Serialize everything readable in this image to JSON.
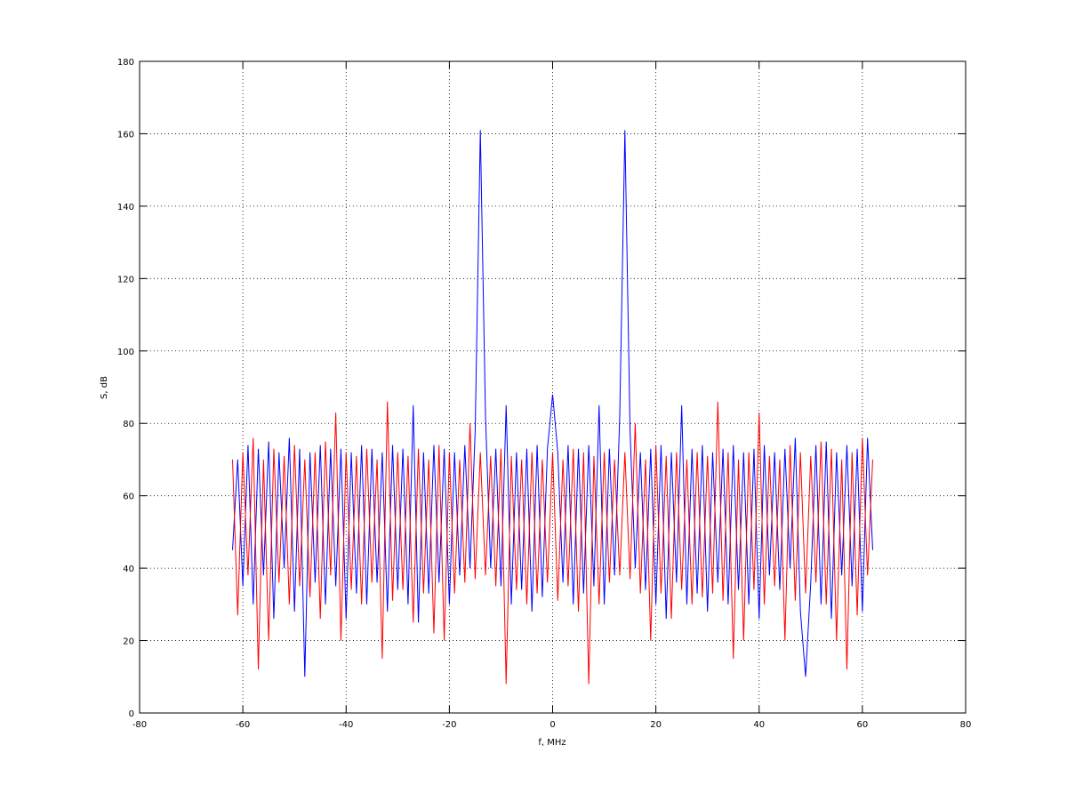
{
  "chart_data": {
    "type": "line",
    "xlabel": "f, MHz",
    "ylabel": "S, dB",
    "xlim": [
      -80,
      80
    ],
    "xticks": [
      -80,
      -60,
      -40,
      -20,
      0,
      20,
      40,
      60,
      80
    ],
    "ylim": [
      0,
      180
    ],
    "yticks": [
      0,
      20,
      40,
      60,
      80,
      100,
      120,
      140,
      160,
      180
    ],
    "grid": true,
    "x": [
      -62,
      -61,
      -60,
      -59,
      -58,
      -57,
      -56,
      -55,
      -54,
      -53,
      -52,
      -51,
      -50,
      -49,
      -48,
      -47,
      -46,
      -45,
      -44,
      -43,
      -42,
      -41,
      -40,
      -39,
      -38,
      -37,
      -36,
      -35,
      -34,
      -33,
      -32,
      -31,
      -30,
      -29,
      -28,
      -27,
      -26,
      -25,
      -24,
      -23,
      -22,
      -21,
      -20,
      -19,
      -18,
      -17,
      -16,
      -15,
      -14,
      -13,
      -12,
      -11,
      -10,
      -9,
      -8,
      -7,
      -6,
      -5,
      -4,
      -3,
      -2,
      -1,
      0,
      1,
      2,
      3,
      4,
      5,
      6,
      7,
      8,
      9,
      10,
      11,
      12,
      13,
      14,
      15,
      16,
      17,
      18,
      19,
      20,
      21,
      22,
      23,
      24,
      25,
      26,
      27,
      28,
      29,
      30,
      31,
      32,
      33,
      34,
      35,
      36,
      37,
      38,
      39,
      40,
      41,
      42,
      43,
      44,
      45,
      46,
      47,
      48,
      49,
      50,
      51,
      52,
      53,
      54,
      55,
      56,
      57,
      58,
      59,
      60,
      61,
      62
    ],
    "series": [
      {
        "color": "#0000ff",
        "values": [
          45,
          70,
          35,
          74,
          30,
          73,
          38,
          75,
          26,
          72,
          40,
          76,
          28,
          73,
          10,
          72,
          36,
          74,
          30,
          73,
          35,
          73,
          26,
          72,
          33,
          74,
          30,
          73,
          36,
          72,
          28,
          74,
          34,
          73,
          30,
          85,
          25,
          72,
          33,
          74,
          36,
          73,
          30,
          72,
          38,
          74,
          40,
          78,
          161,
          82,
          40,
          73,
          35,
          85,
          30,
          72,
          34,
          73,
          28,
          74,
          32,
          73,
          88,
          72,
          36,
          74,
          30,
          73,
          33,
          74,
          35,
          85,
          30,
          73,
          38,
          82,
          161,
          78,
          40,
          72,
          34,
          73,
          30,
          74,
          26,
          72,
          36,
          85,
          30,
          73,
          33,
          74,
          28,
          72,
          36,
          73,
          30,
          74,
          34,
          72,
          30,
          73,
          26,
          74,
          38,
          72,
          34,
          73,
          40,
          76,
          28,
          10,
          36,
          74,
          30,
          75,
          26,
          72,
          38,
          74,
          35,
          73,
          28,
          76,
          45
        ]
      },
      {
        "color": "#ff0000",
        "values": [
          70,
          27,
          72,
          38,
          76,
          12,
          70,
          20,
          73,
          36,
          71,
          30,
          74,
          35,
          70,
          32,
          72,
          26,
          75,
          38,
          83,
          20,
          72,
          34,
          71,
          30,
          73,
          36,
          70,
          15,
          86,
          31,
          72,
          34,
          71,
          25,
          73,
          33,
          70,
          22,
          74,
          20,
          72,
          33,
          70,
          36,
          80,
          37,
          72,
          38,
          71,
          35,
          73,
          8,
          71,
          34,
          70,
          30,
          72,
          33,
          70,
          36,
          72,
          31,
          70,
          35,
          73,
          28,
          72,
          8,
          71,
          30,
          72,
          36,
          70,
          38,
          72,
          37,
          80,
          33,
          70,
          20,
          74,
          33,
          71,
          26,
          72,
          34,
          70,
          30,
          72,
          32,
          71,
          33,
          86,
          31,
          72,
          15,
          70,
          20,
          72,
          34,
          83,
          30,
          71,
          35,
          70,
          20,
          74,
          31,
          72,
          33,
          71,
          36,
          75,
          30,
          73,
          20,
          70,
          12,
          72,
          27,
          76,
          38,
          70
        ]
      }
    ]
  }
}
